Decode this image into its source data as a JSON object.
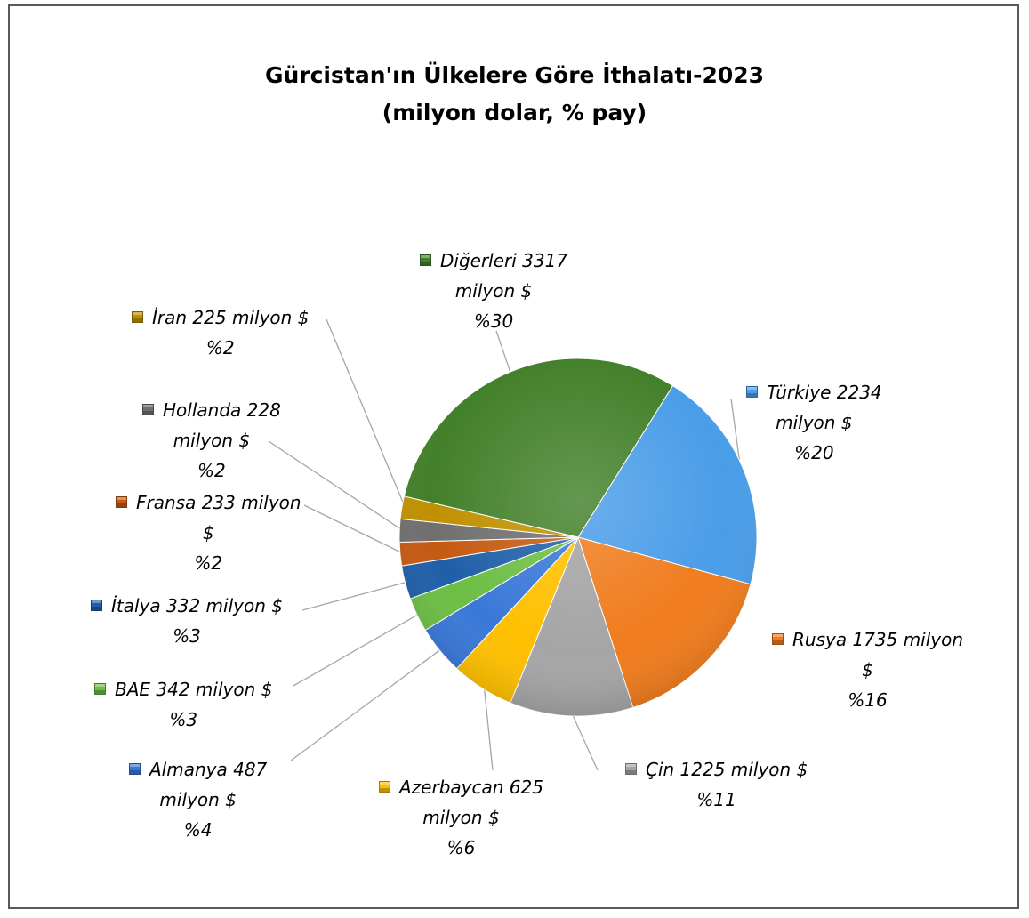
{
  "chart_data": {
    "type": "pie",
    "title": "Gürcistan'ın Ülkelere Göre İthalatı-2023",
    "subtitle": "(milyon dolar, % pay)",
    "slices": [
      {
        "name": "Türkiye",
        "value": 2234,
        "percent": 20,
        "color": "#4a9de8",
        "lines": [
          "Türkiye 2234",
          "milyon $",
          "%20"
        ]
      },
      {
        "name": "Rusya",
        "value": 1735,
        "percent": 16,
        "color": "#f07c1e",
        "lines": [
          "Rusya 1735 milyon",
          "$",
          "%16"
        ]
      },
      {
        "name": "Çin",
        "value": 1225,
        "percent": 11,
        "color": "#a5a5a5",
        "lines": [
          "Çin 1225 milyon $",
          "%11"
        ]
      },
      {
        "name": "Azerbaycan",
        "value": 625,
        "percent": 6,
        "color": "#ffc000",
        "lines": [
          "Azerbaycan 625",
          "milyon $",
          "%6"
        ]
      },
      {
        "name": "Almanya",
        "value": 487,
        "percent": 4,
        "color": "#3a78d8",
        "lines": [
          "Almanya 487",
          "milyon $",
          "%4"
        ]
      },
      {
        "name": "BAE",
        "value": 342,
        "percent": 3,
        "color": "#6dbe45",
        "lines": [
          "BAE 342 milyon $",
          "%3"
        ]
      },
      {
        "name": "İtalya",
        "value": 332,
        "percent": 3,
        "color": "#1f5fa8",
        "lines": [
          "İtalya 332 milyon $",
          "%3"
        ]
      },
      {
        "name": "Fransa",
        "value": 233,
        "percent": 2,
        "color": "#c55a11",
        "lines": [
          "Fransa 233 milyon",
          "$",
          "%2"
        ]
      },
      {
        "name": "Hollanda",
        "value": 228,
        "percent": 2,
        "color": "#6f6f6f",
        "lines": [
          "Hollanda 228",
          "milyon $",
          "%2"
        ]
      },
      {
        "name": "İran",
        "value": 225,
        "percent": 2,
        "color": "#bf9000",
        "lines": [
          "İran 225 milyon $",
          "%2"
        ]
      },
      {
        "name": "Diğerleri",
        "value": 3317,
        "percent": 30,
        "color": "#43802a",
        "lines": [
          "Diğerleri 3317",
          "milyon $",
          "%30"
        ]
      }
    ]
  }
}
